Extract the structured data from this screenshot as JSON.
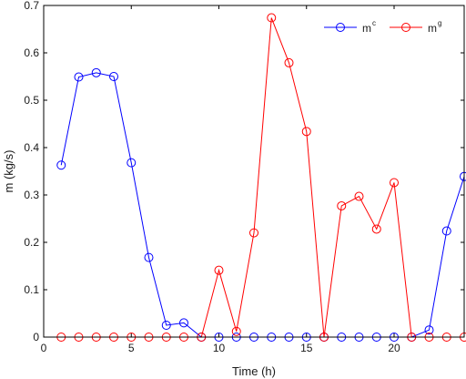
{
  "chart_data": {
    "type": "line",
    "xlabel": "Time (h)",
    "ylabel": "m (kg/s)",
    "xlim": [
      0,
      24
    ],
    "ylim": [
      0,
      0.7
    ],
    "xticks": [
      "0",
      "5",
      "10",
      "15",
      "20"
    ],
    "xtick_values": [
      0,
      5,
      10,
      15,
      20
    ],
    "yticks": [
      "0",
      "0.1",
      "0.2",
      "0.3",
      "0.4",
      "0.5",
      "0.6",
      "0.7"
    ],
    "ytick_values": [
      0,
      0.1,
      0.2,
      0.3,
      0.4,
      0.5,
      0.6,
      0.7
    ],
    "grid": false,
    "legend_position": "top-right",
    "x": [
      1,
      2,
      3,
      4,
      5,
      6,
      7,
      8,
      9,
      10,
      11,
      12,
      13,
      14,
      15,
      16,
      17,
      18,
      19,
      20,
      21,
      22,
      23,
      24
    ],
    "series": [
      {
        "name": "m",
        "name_sup": "c",
        "color": "#0000ff",
        "values": [
          0.363,
          0.549,
          0.558,
          0.55,
          0.368,
          0.168,
          0.025,
          0.03,
          0,
          0,
          0,
          0,
          0,
          0,
          0,
          0,
          0,
          0,
          0,
          0,
          0,
          0.015,
          0.224,
          0.339
        ]
      },
      {
        "name": "m",
        "name_sup": "g",
        "color": "#ff0000",
        "values": [
          0,
          0,
          0,
          0,
          0,
          0,
          0,
          0,
          0,
          0.141,
          0.012,
          0.22,
          0.674,
          0.579,
          0.434,
          0,
          0.277,
          0.297,
          0.228,
          0.326,
          0,
          0,
          0,
          0
        ]
      }
    ]
  }
}
